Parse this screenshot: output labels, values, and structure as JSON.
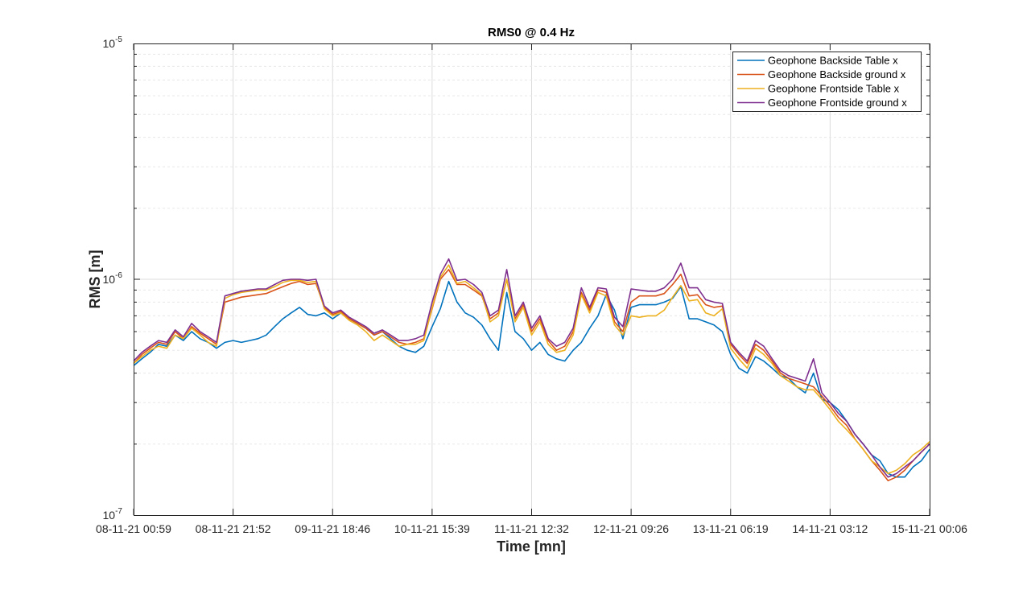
{
  "chart_data": {
    "type": "line",
    "title": "RMS0 @ 0.4 Hz",
    "xlabel": "Time [mn]",
    "ylabel": "RMS [m]",
    "yscale": "log",
    "ylim": [
      1e-07,
      1e-05
    ],
    "y_ticks": [
      {
        "base": "10",
        "exp": "-7",
        "value": 1e-07
      },
      {
        "base": "10",
        "exp": "-6",
        "value": 1e-06
      },
      {
        "base": "10",
        "exp": "-5",
        "value": 1e-05
      }
    ],
    "x_ticks": [
      "08-11-21 00:59",
      "08-11-21 21:52",
      "09-11-21 18:46",
      "10-11-21 15:39",
      "11-11-21 12:32",
      "12-11-21 09:26",
      "13-11-21 06:19",
      "14-11-21 03:12",
      "15-11-21 00:06"
    ],
    "grid": true,
    "legend_position": "top-right",
    "x": [
      0,
      0.083,
      0.167,
      0.25,
      0.333,
      0.417,
      0.5,
      0.583,
      0.667,
      0.75,
      0.833,
      0.917,
      1,
      1.083,
      1.167,
      1.25,
      1.333,
      1.417,
      1.5,
      1.583,
      1.667,
      1.75,
      1.833,
      1.917,
      2,
      2.083,
      2.167,
      2.25,
      2.333,
      2.417,
      2.5,
      2.583,
      2.667,
      2.75,
      2.833,
      2.917,
      3,
      3.083,
      3.167,
      3.25,
      3.333,
      3.417,
      3.5,
      3.583,
      3.667,
      3.75,
      3.833,
      3.917,
      4,
      4.083,
      4.167,
      4.25,
      4.333,
      4.417,
      4.5,
      4.583,
      4.667,
      4.75,
      4.833,
      4.917,
      5,
      5.083,
      5.167,
      5.25,
      5.333,
      5.417,
      5.5,
      5.583,
      5.667,
      5.75,
      5.833,
      5.917,
      6,
      6.083,
      6.167,
      6.25,
      6.333,
      6.417,
      6.5,
      6.583,
      6.667,
      6.75,
      6.833,
      6.917,
      7,
      7.083,
      7.167,
      7.25,
      7.333,
      7.417,
      7.5,
      7.583,
      7.667,
      7.75,
      7.833,
      7.917,
      8
    ],
    "series": [
      {
        "name": "Geophone Backside Table x",
        "color": "#0072BD",
        "values": [
          4.3e-07,
          4.6e-07,
          4.9e-07,
          5.3e-07,
          5.2e-07,
          5.8e-07,
          5.5e-07,
          6e-07,
          5.6e-07,
          5.4e-07,
          5.1e-07,
          5.4e-07,
          5.5e-07,
          5.4e-07,
          5.5e-07,
          5.6e-07,
          5.8e-07,
          6.3e-07,
          6.8e-07,
          7.2e-07,
          7.6e-07,
          7.1e-07,
          7e-07,
          7.2e-07,
          6.8e-07,
          7.2e-07,
          6.8e-07,
          6.5e-07,
          6.2e-07,
          5.8e-07,
          6e-07,
          5.6e-07,
          5.2e-07,
          5e-07,
          4.9e-07,
          5.2e-07,
          6.3e-07,
          7.5e-07,
          9.8e-07,
          8e-07,
          7.2e-07,
          6.9e-07,
          6.4e-07,
          5.6e-07,
          5e-07,
          8.8e-07,
          6e-07,
          5.6e-07,
          5e-07,
          5.4e-07,
          4.8e-07,
          4.6e-07,
          4.5e-07,
          5e-07,
          5.4e-07,
          6.2e-07,
          7e-07,
          8.6e-07,
          7.4e-07,
          5.6e-07,
          7.6e-07,
          7.8e-07,
          7.8e-07,
          7.8e-07,
          8e-07,
          8.3e-07,
          9.3e-07,
          6.8e-07,
          6.8e-07,
          6.6e-07,
          6.4e-07,
          6e-07,
          4.8e-07,
          4.2e-07,
          4e-07,
          4.7e-07,
          4.5e-07,
          4.2e-07,
          3.9e-07,
          3.8e-07,
          3.5e-07,
          3.3e-07,
          4e-07,
          3.1e-07,
          3e-07,
          2.8e-07,
          2.5e-07,
          2.2e-07,
          2e-07,
          1.8e-07,
          1.7e-07,
          1.5e-07,
          1.45e-07,
          1.45e-07,
          1.6e-07,
          1.7e-07,
          1.9e-07
        ]
      },
      {
        "name": "Geophone Backside ground x",
        "color": "#D95319",
        "values": [
          4.4e-07,
          4.8e-07,
          5.1e-07,
          5.4e-07,
          5.3e-07,
          6e-07,
          5.6e-07,
          6.3e-07,
          5.9e-07,
          5.6e-07,
          5.3e-07,
          8e-07,
          8.2e-07,
          8.4e-07,
          8.5e-07,
          8.6e-07,
          8.7e-07,
          9e-07,
          9.3e-07,
          9.6e-07,
          9.8e-07,
          9.5e-07,
          9.6e-07,
          7.6e-07,
          7.1e-07,
          7.3e-07,
          6.8e-07,
          6.5e-07,
          6.2e-07,
          5.8e-07,
          6e-07,
          5.7e-07,
          5.4e-07,
          5.3e-07,
          5.4e-07,
          5.6e-07,
          7.5e-07,
          1e-06,
          1.1e-06,
          9.5e-07,
          9.5e-07,
          9e-07,
          8.5e-07,
          6.8e-07,
          7.2e-07,
          1e-06,
          6.8e-07,
          7.8e-07,
          6e-07,
          6.8e-07,
          5.5e-07,
          5e-07,
          5.2e-07,
          6e-07,
          8.8e-07,
          7.4e-07,
          9e-07,
          8.8e-07,
          6.6e-07,
          6e-07,
          8e-07,
          8.5e-07,
          8.5e-07,
          8.5e-07,
          8.7e-07,
          9.5e-07,
          1.05e-06,
          8.5e-07,
          8.6e-07,
          7.8e-07,
          7.6e-07,
          7.7e-07,
          5.3e-07,
          4.8e-07,
          4.4e-07,
          5.3e-07,
          5e-07,
          4.5e-07,
          4e-07,
          3.8e-07,
          3.7e-07,
          3.6e-07,
          3.5e-07,
          3.2e-07,
          2.9e-07,
          2.6e-07,
          2.4e-07,
          2.1e-07,
          1.9e-07,
          1.7e-07,
          1.55e-07,
          1.4e-07,
          1.45e-07,
          1.55e-07,
          1.7e-07,
          1.85e-07,
          2e-07
        ]
      },
      {
        "name": "Geophone Frontside Table x",
        "color": "#EDB120",
        "values": [
          4.4e-07,
          4.7e-07,
          5e-07,
          5.2e-07,
          5.1e-07,
          5.8e-07,
          5.6e-07,
          6.2e-07,
          5.8e-07,
          5.4e-07,
          5.2e-07,
          8.3e-07,
          8.6e-07,
          8.8e-07,
          8.9e-07,
          9e-07,
          9e-07,
          9.3e-07,
          9.7e-07,
          9.9e-07,
          9.9e-07,
          9.7e-07,
          9.8e-07,
          7.5e-07,
          7e-07,
          7.2e-07,
          6.7e-07,
          6.4e-07,
          6e-07,
          5.5e-07,
          5.8e-07,
          5.5e-07,
          5.2e-07,
          5.3e-07,
          5.3e-07,
          5.5e-07,
          7.6e-07,
          1.02e-06,
          1.15e-06,
          9.6e-07,
          9.8e-07,
          9.2e-07,
          8.6e-07,
          6.6e-07,
          7e-07,
          1e-06,
          6.6e-07,
          7.6e-07,
          5.8e-07,
          6.6e-07,
          5.3e-07,
          4.9e-07,
          5e-07,
          5.8e-07,
          8.6e-07,
          7.2e-07,
          8.8e-07,
          8.5e-07,
          6.4e-07,
          5.8e-07,
          7e-07,
          6.9e-07,
          7e-07,
          7e-07,
          7.4e-07,
          8.4e-07,
          9.4e-07,
          8.1e-07,
          8.2e-07,
          7.2e-07,
          7e-07,
          7.5e-07,
          5.1e-07,
          4.6e-07,
          4.2e-07,
          5.1e-07,
          4.8e-07,
          4.4e-07,
          3.9e-07,
          3.7e-07,
          3.5e-07,
          3.4e-07,
          3.4e-07,
          3.1e-07,
          2.8e-07,
          2.5e-07,
          2.3e-07,
          2.1e-07,
          1.9e-07,
          1.7e-07,
          1.6e-07,
          1.5e-07,
          1.55e-07,
          1.65e-07,
          1.8e-07,
          1.9e-07,
          2.05e-07
        ]
      },
      {
        "name": "Geophone Frontside ground x",
        "color": "#7E2F8E",
        "values": [
          4.5e-07,
          4.9e-07,
          5.2e-07,
          5.5e-07,
          5.4e-07,
          6.1e-07,
          5.7e-07,
          6.5e-07,
          6e-07,
          5.7e-07,
          5.4e-07,
          8.5e-07,
          8.7e-07,
          8.9e-07,
          9e-07,
          9.1e-07,
          9.1e-07,
          9.5e-07,
          9.9e-07,
          1e-06,
          1e-06,
          9.9e-07,
          1e-06,
          7.7e-07,
          7.2e-07,
          7.4e-07,
          6.9e-07,
          6.6e-07,
          6.3e-07,
          5.9e-07,
          6.1e-07,
          5.8e-07,
          5.5e-07,
          5.5e-07,
          5.6e-07,
          5.8e-07,
          8e-07,
          1.05e-06,
          1.22e-06,
          9.9e-07,
          1e-06,
          9.5e-07,
          8.8e-07,
          7e-07,
          7.4e-07,
          1.1e-06,
          7e-07,
          8e-07,
          6.2e-07,
          7e-07,
          5.6e-07,
          5.2e-07,
          5.4e-07,
          6.2e-07,
          9.2e-07,
          7.6e-07,
          9.2e-07,
          9.1e-07,
          6.9e-07,
          6.3e-07,
          9.1e-07,
          9e-07,
          8.9e-07,
          8.9e-07,
          9.2e-07,
          1e-06,
          1.17e-06,
          9.2e-07,
          9.2e-07,
          8.2e-07,
          8e-07,
          7.9e-07,
          5.4e-07,
          4.9e-07,
          4.5e-07,
          5.5e-07,
          5.2e-07,
          4.6e-07,
          4.1e-07,
          3.9e-07,
          3.8e-07,
          3.7e-07,
          4.6e-07,
          3.3e-07,
          3e-07,
          2.7e-07,
          2.5e-07,
          2.2e-07,
          2e-07,
          1.8e-07,
          1.6e-07,
          1.45e-07,
          1.5e-07,
          1.6e-07,
          1.7e-07,
          1.85e-07,
          2e-07
        ]
      }
    ]
  }
}
